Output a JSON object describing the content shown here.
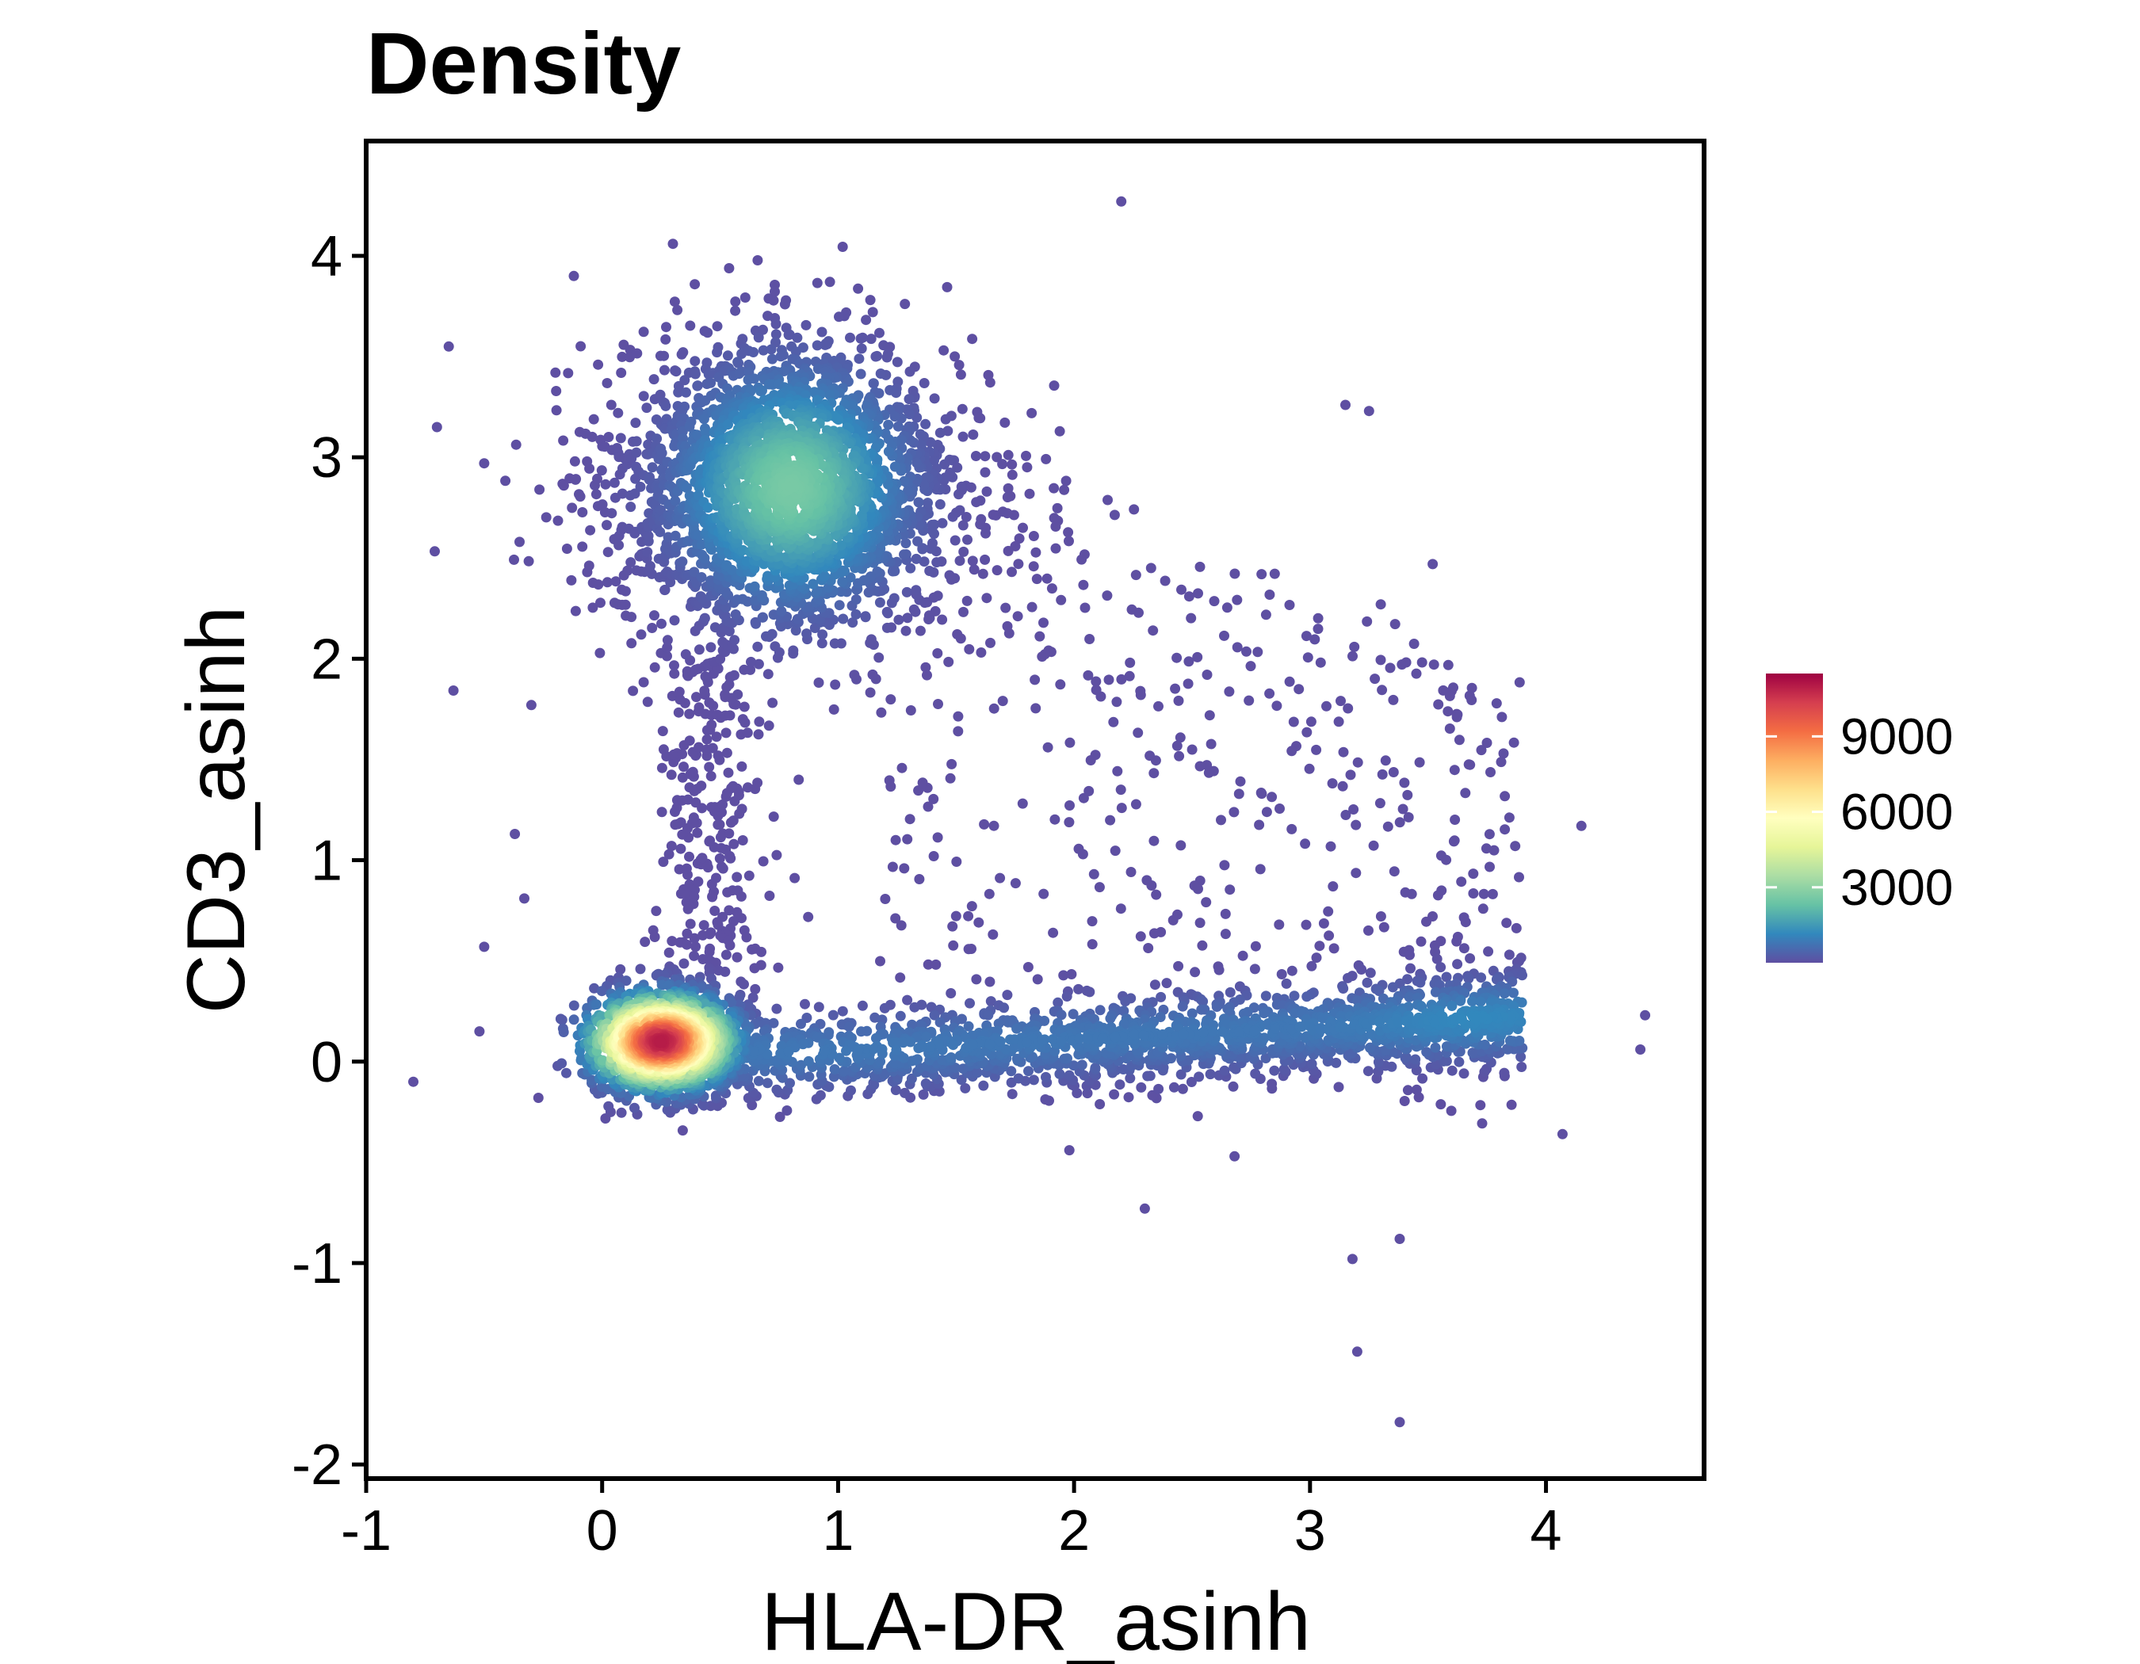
{
  "chart_data": {
    "type": "scatter",
    "title": "Density",
    "xlabel": "HLA-DR_asinh",
    "ylabel": "CD3_asinh",
    "xlim": [
      -1.0,
      4.67
    ],
    "ylim": [
      -2.07,
      4.57
    ],
    "x_ticks": [
      "-1",
      "0",
      "1",
      "2",
      "3",
      "4"
    ],
    "y_ticks": [
      "-2",
      "-1",
      "0",
      "1",
      "2",
      "3",
      "4"
    ],
    "grid": false,
    "legend": {
      "placement": "right",
      "type": "colorbar",
      "range": [
        0,
        11500
      ],
      "ticks": [
        "3000",
        "6000",
        "9000"
      ],
      "colors": [
        "#5E4FA2",
        "#3288BD",
        "#66C2A5",
        "#ABDDA4",
        "#E6F598",
        "#FFFFBF",
        "#FEE08B",
        "#FDAE61",
        "#F46D43",
        "#D53E4F",
        "#9E0142"
      ]
    },
    "clusters": [
      {
        "name": "CD3+ HLA-DR- population",
        "center_x": 0.8,
        "center_y": 2.85,
        "peak_density": 2600
      },
      {
        "name": "CD3- HLA-DR- population",
        "center_x": 0.25,
        "center_y": 0.1,
        "peak_density": 11000
      },
      {
        "name": "CD3- HLA-DR+ band",
        "x_range": [
          0.9,
          3.9
        ],
        "center_y": 0.15,
        "peak_density": 1200
      }
    ],
    "outlier_points": [
      {
        "x": 2.2,
        "y": 4.27
      },
      {
        "x": 0.3,
        "y": 4.06
      },
      {
        "x": -0.12,
        "y": 3.9
      },
      {
        "x": -0.65,
        "y": 3.55
      },
      {
        "x": -0.7,
        "y": 3.15
      },
      {
        "x": -0.5,
        "y": 2.97
      },
      {
        "x": -0.35,
        "y": 2.58
      },
      {
        "x": -0.3,
        "y": 1.77
      },
      {
        "x": -0.37,
        "y": 1.13
      },
      {
        "x": -0.33,
        "y": 0.81
      },
      {
        "x": -0.5,
        "y": 0.57
      },
      {
        "x": -0.52,
        "y": 0.15
      },
      {
        "x": -0.8,
        "y": -0.1
      },
      {
        "x": -0.27,
        "y": -0.18
      },
      {
        "x": 0.46,
        "y": -0.22
      },
      {
        "x": 4.15,
        "y": 1.17
      },
      {
        "x": 4.42,
        "y": 0.23
      },
      {
        "x": 4.4,
        "y": 0.06
      },
      {
        "x": 4.07,
        "y": -0.36
      },
      {
        "x": 2.3,
        "y": -0.73
      },
      {
        "x": 1.98,
        "y": -0.44
      },
      {
        "x": 2.68,
        "y": -0.47
      },
      {
        "x": 3.18,
        "y": -0.98
      },
      {
        "x": 3.38,
        "y": -0.88
      },
      {
        "x": 3.2,
        "y": -1.44
      },
      {
        "x": 3.38,
        "y": -1.79
      },
      {
        "x": 3.25,
        "y": 3.23
      },
      {
        "x": 3.15,
        "y": 3.26
      },
      {
        "x": 3.3,
        "y": 2.27
      },
      {
        "x": 3.52,
        "y": 2.47
      }
    ]
  }
}
